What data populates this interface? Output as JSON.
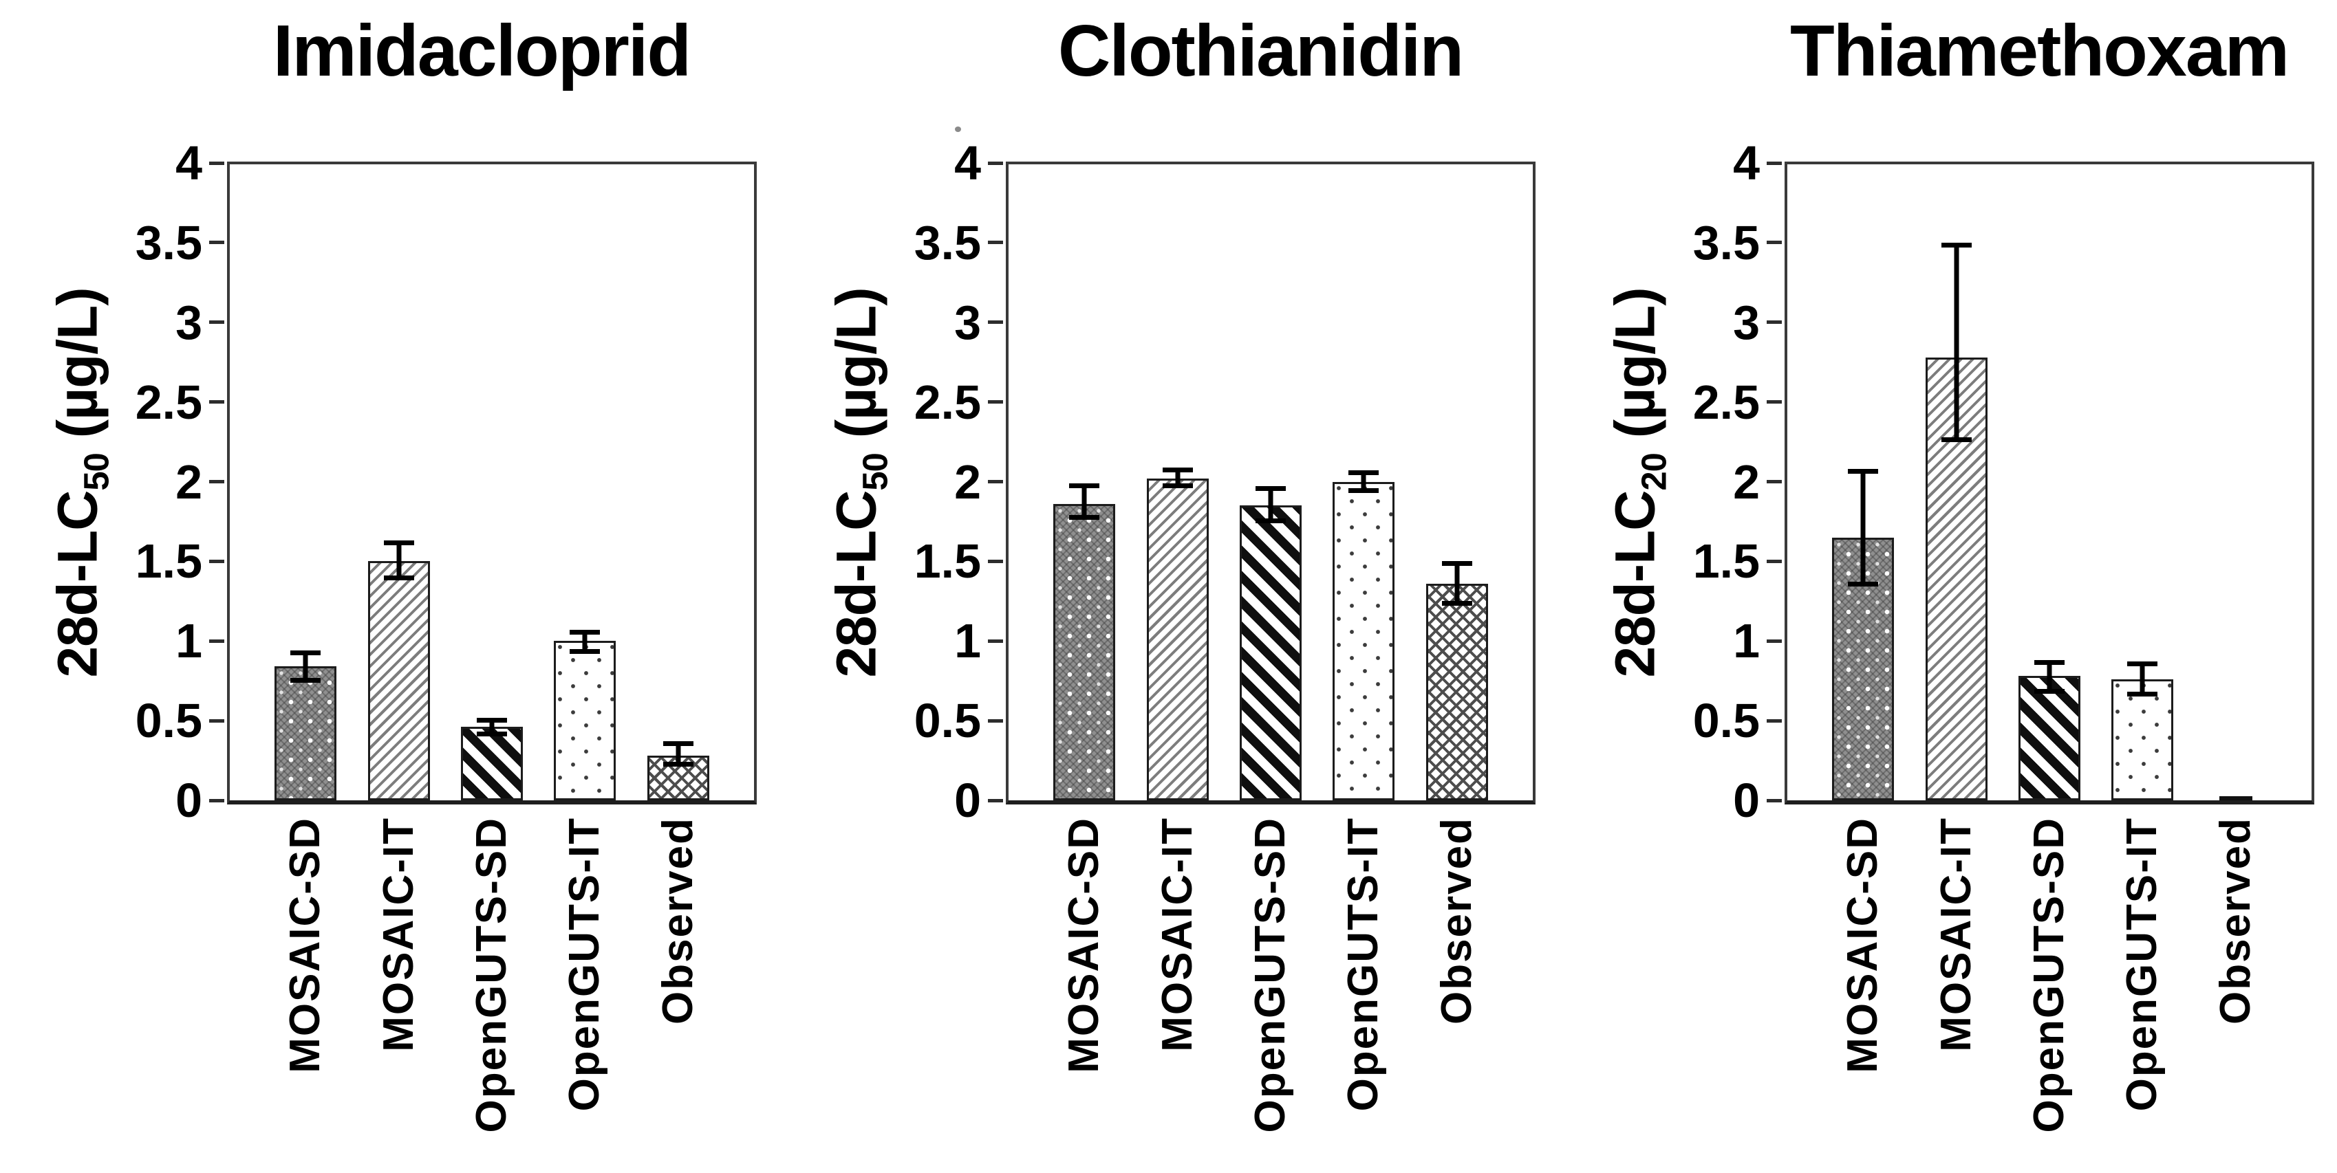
{
  "figure": {
    "background": "#ffffff",
    "text_color": "#000000",
    "axis_color": "#3a3a3a",
    "error_bar_color": "#000000",
    "bar_patterns": [
      {
        "category": "MOSAIC-SD",
        "fill": "dark-gray-with-white-dot-grid",
        "fill_color": "#8f8f8f"
      },
      {
        "category": "MOSAIC-IT",
        "fill": "thin-gray-diagonal-stripes-up-right",
        "fill_color": "#7d7d7d"
      },
      {
        "category": "OpenGUTS-SD",
        "fill": "thick-black-diagonal-stripes-down-right",
        "fill_color": "#0f0f0f"
      },
      {
        "category": "OpenGUTS-IT",
        "fill": "white-with-sparse-dark-dots",
        "fill_color": "#3c3c3c"
      },
      {
        "category": "Observed",
        "fill": "gray-diamond-crosshatch",
        "fill_color": "#4d4d4d"
      }
    ]
  },
  "chart_data": [
    {
      "type": "bar",
      "title": "Imidacloprid",
      "ylabel_prefix": "28d-LC",
      "ylabel_sub": "50",
      "ylabel_unit": " (µg/L)",
      "ylim": [
        0,
        4
      ],
      "grid": false,
      "legend": "none",
      "yticks": [
        "0",
        "0.5",
        "1",
        "1.5",
        "2",
        "2.5",
        "3",
        "3.5",
        "4"
      ],
      "categories": [
        "MOSAIC-SD",
        "MOSAIC-IT",
        "OpenGUTS-SD",
        "OpenGUTS-IT",
        "Observed"
      ],
      "values": [
        0.84,
        1.5,
        0.46,
        1.0,
        0.28
      ],
      "error_low": [
        0.74,
        1.38,
        0.4,
        0.92,
        0.21
      ],
      "error_high": [
        0.94,
        1.63,
        0.52,
        1.07,
        0.37
      ]
    },
    {
      "type": "bar",
      "title": "Clothianidin",
      "ylabel_prefix": "28d-LC",
      "ylabel_sub": "50",
      "ylabel_unit": " (µg/L)",
      "ylim": [
        0,
        4
      ],
      "grid": false,
      "legend": "none",
      "yticks": [
        "0",
        "0.5",
        "1",
        "1.5",
        "2",
        "2.5",
        "3",
        "3.5",
        "4"
      ],
      "categories": [
        "MOSAIC-SD",
        "MOSAIC-IT",
        "OpenGUTS-SD",
        "OpenGUTS-IT",
        "Observed"
      ],
      "values": [
        1.86,
        2.02,
        1.85,
        2.0,
        1.36
      ],
      "error_low": [
        1.76,
        1.96,
        1.74,
        1.93,
        1.22
      ],
      "error_high": [
        1.99,
        2.09,
        1.97,
        2.07,
        1.5
      ]
    },
    {
      "type": "bar",
      "title": "Thiamethoxam",
      "ylabel_prefix": "28d-LC",
      "ylabel_sub": "20",
      "ylabel_unit": " (µg/L)",
      "ylim": [
        0,
        4
      ],
      "grid": false,
      "legend": "none",
      "yticks": [
        "0",
        "0.5",
        "1",
        "1.5",
        "2",
        "2.5",
        "3",
        "3.5",
        "4"
      ],
      "categories": [
        "MOSAIC-SD",
        "MOSAIC-IT",
        "OpenGUTS-SD",
        "OpenGUTS-IT",
        "Observed"
      ],
      "values": [
        1.65,
        2.78,
        0.78,
        0.76,
        0.01
      ],
      "error_low": [
        1.34,
        2.25,
        0.67,
        0.65,
        null
      ],
      "error_high": [
        2.08,
        3.5,
        0.88,
        0.87,
        null
      ]
    }
  ]
}
